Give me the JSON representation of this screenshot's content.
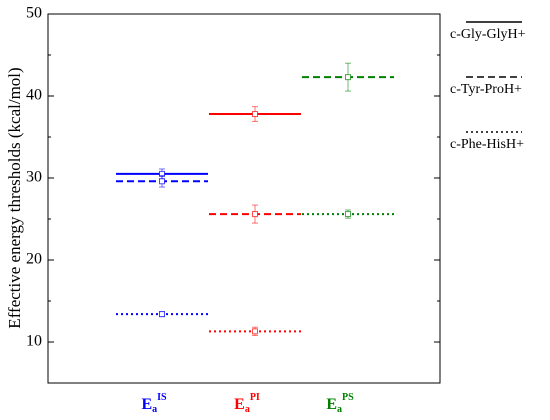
{
  "chart_data": {
    "type": "segment",
    "y_label": "Effective energy thresholds (kcal/mol)",
    "category_prefix": "E",
    "category_subscript": "a",
    "categories": [
      "IS",
      "PI",
      "PS"
    ],
    "category_colors": [
      "#0000ff",
      "#ff0000",
      "#008000"
    ],
    "ylim": [
      5,
      50
    ],
    "yticks": [
      10,
      20,
      30,
      40,
      50
    ],
    "minor_step": 5,
    "series": [
      {
        "name": "c-Gly-GlyH+",
        "dash": "solid",
        "values": [
          30.5,
          37.8,
          null
        ],
        "errors": [
          0.6,
          0.9,
          null
        ]
      },
      {
        "name": "c-Tyr-ProH+",
        "dash": "dashed",
        "values": [
          29.6,
          25.6,
          42.3
        ],
        "errors": [
          0.7,
          1.1,
          1.7
        ]
      },
      {
        "name": "c-Phe-HisH+",
        "dash": "dotted",
        "values": [
          13.4,
          11.3,
          25.6
        ],
        "errors": [
          0.3,
          0.5,
          0.5
        ]
      }
    ]
  }
}
